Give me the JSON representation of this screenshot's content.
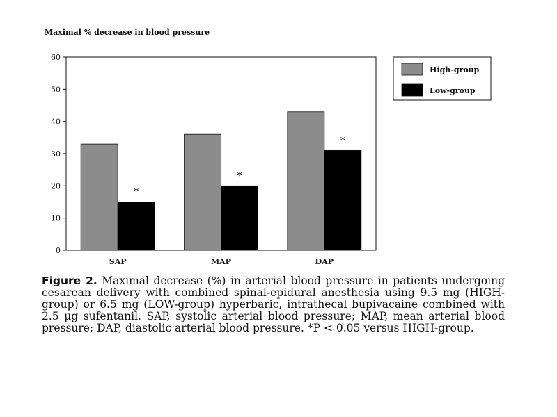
{
  "chart_data": {
    "type": "bar",
    "title": "Maximal % decrease in blood pressure",
    "categories": [
      "SAP",
      "MAP",
      "DAP"
    ],
    "series": [
      {
        "name": "High-group",
        "values": [
          33,
          36,
          43
        ],
        "color": "#8c8c8c"
      },
      {
        "name": "Low-group",
        "values": [
          15,
          20,
          31
        ],
        "color": "#000000"
      }
    ],
    "annotations": [
      "*",
      "*",
      "*"
    ],
    "ylim": [
      0,
      60
    ],
    "yticks": [
      "0",
      "10",
      "20",
      "30",
      "40",
      "50",
      "60"
    ],
    "grid": false,
    "legend": "top-right"
  },
  "caption": {
    "label": "Figure 2.",
    "text": " Maximal decrease (%) in arterial blood pressure in patients undergoing cesarean delivery with combined spinal-epidural anesthesia using 9.5 mg (HIGH-group) or 6.5 mg (LOW-group) hyperbaric, intrathecal bupivacaine combined with 2.5 μg sufentanil. SAP, systolic arterial blood pressure; MAP, mean arterial blood pressure; DAP, diastolic arterial blood pressure. *P < 0.05 versus HIGH-group."
  }
}
